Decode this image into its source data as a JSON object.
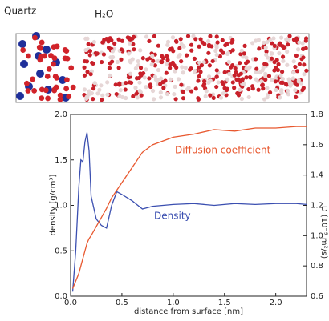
{
  "header": {
    "left_label": "Quartz",
    "right_label": "H₂O"
  },
  "chart_data": {
    "type": "line",
    "xlabel": "distance from surface [nm]",
    "ylabel": "density [g/cm³]",
    "y2label": "D (10⁻⁹ m²/s)",
    "annotations": [
      "Diffusion coefficient",
      "Density"
    ],
    "x": [
      0.02,
      0.05,
      0.08,
      0.1,
      0.12,
      0.14,
      0.16,
      0.18,
      0.2,
      0.25,
      0.3,
      0.35,
      0.4,
      0.45,
      0.5,
      0.6,
      0.7,
      0.8,
      1.0,
      1.2,
      1.4,
      1.6,
      1.8,
      2.0,
      2.2,
      2.3
    ],
    "series": [
      {
        "name": "Density",
        "color": "#3b4fb0",
        "values": [
          0.05,
          0.5,
          1.2,
          1.5,
          1.48,
          1.7,
          1.8,
          1.6,
          1.1,
          0.85,
          0.78,
          0.75,
          1.0,
          1.15,
          1.12,
          1.05,
          0.96,
          0.99,
          1.01,
          1.02,
          1.0,
          1.02,
          1.01,
          1.02,
          1.02,
          1.01
        ]
      },
      {
        "name": "Diffusion coefficient",
        "color": "#e8582f",
        "axis": "y2",
        "values": [
          0.65,
          0.7,
          0.75,
          0.8,
          0.85,
          0.9,
          0.95,
          0.98,
          1.0,
          1.06,
          1.12,
          1.18,
          1.25,
          1.3,
          1.35,
          1.45,
          1.55,
          1.6,
          1.65,
          1.67,
          1.7,
          1.69,
          1.71,
          1.71,
          1.72,
          1.72
        ]
      }
    ],
    "xlim": [
      0,
      2.3
    ],
    "xticks": [
      {
        "value": 0,
        "label": "0.0"
      },
      0.5,
      {
        "value": 1,
        "label": "1.0"
      },
      1.5,
      {
        "value": 2,
        "label": "2.0"
      }
    ],
    "ylim": [
      0,
      2
    ],
    "yticks": [
      {
        "value": 0,
        "label": "0.0"
      },
      0.5,
      {
        "value": 1,
        "label": "1.0"
      },
      1.5,
      {
        "value": 2,
        "label": "2.0"
      }
    ],
    "y2lim": [
      0.6,
      1.8
    ],
    "y2ticks": [
      0.6,
      0.8,
      {
        "value": 1,
        "label": "1.0"
      },
      1.2,
      1.4,
      1.6,
      1.8
    ]
  }
}
